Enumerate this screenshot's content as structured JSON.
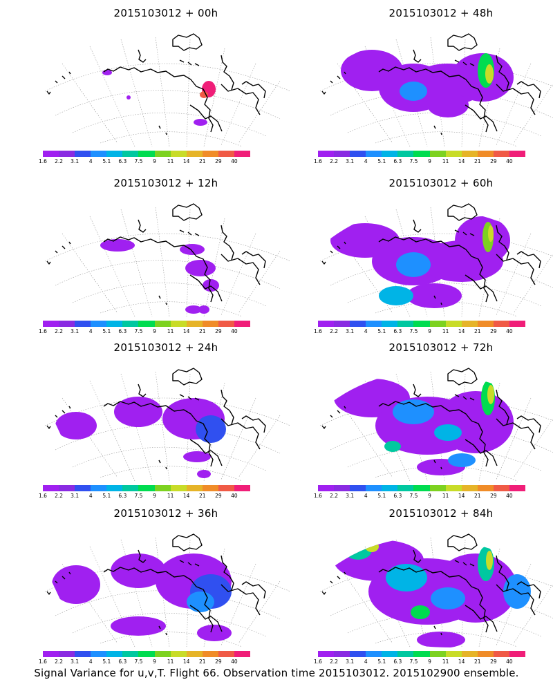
{
  "panels": [
    {
      "title": "2015103012 + 00h",
      "level": 0
    },
    {
      "title": "2015103012 + 48h",
      "level": 4
    },
    {
      "title": "2015103012 + 12h",
      "level": 1
    },
    {
      "title": "2015103012 + 60h",
      "level": 5
    },
    {
      "title": "2015103012 + 24h",
      "level": 2
    },
    {
      "title": "2015103012 + 72h",
      "level": 6
    },
    {
      "title": "2015103012 + 36h",
      "level": 3
    },
    {
      "title": "2015103012 + 84h",
      "level": 7
    }
  ],
  "colorbar": {
    "labels": [
      "1.6",
      "2.2",
      "3.1",
      "4",
      "5.1",
      "6.3",
      "7.5",
      "9",
      "11",
      "14",
      "21",
      "29",
      "40"
    ],
    "colors": [
      "#a020f0",
      "#8a2be2",
      "#3050f0",
      "#1e90ff",
      "#00b4e6",
      "#00c8a0",
      "#00dc50",
      "#7dd220",
      "#c8dc28",
      "#e6b428",
      "#f08c28",
      "#f05a46",
      "#f01e78"
    ]
  },
  "footer": "Signal Variance for u,v,T. Flight 66. Observation time 2015103012. 2015102900 ensemble."
}
